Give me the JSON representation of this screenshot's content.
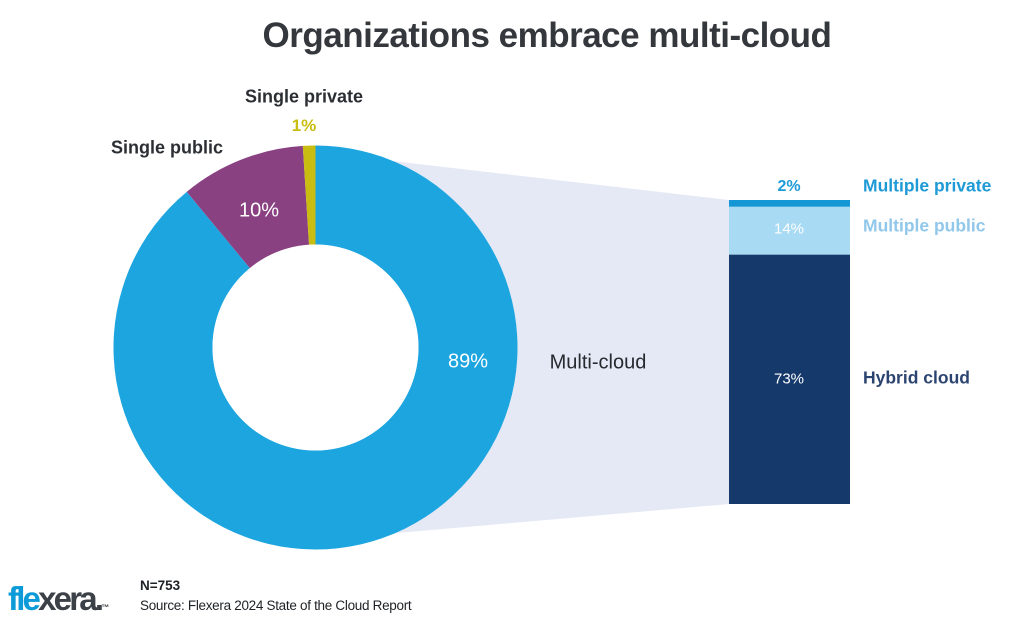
{
  "chart_data": {
    "type": "donut-with-flow-to-stacked-bar",
    "title": "Organizations embrace multi-cloud",
    "flow_label": "Multi-cloud",
    "flow_color": "#E4E9F5",
    "donut": {
      "series": [
        {
          "name": "Multi-cloud",
          "value": 89,
          "label": "89%",
          "color": "#1DA5E0"
        },
        {
          "name": "Single public",
          "value": 10,
          "label": "10%",
          "color": "#8A4182"
        },
        {
          "name": "Single private",
          "value": 1,
          "label": "1%",
          "color": "#C9BD11"
        }
      ]
    },
    "bar": {
      "represents": "Multi-cloud breakdown",
      "segments": [
        {
          "name": "Multiple private",
          "value": 2,
          "label": "2%",
          "color": "#1497D4"
        },
        {
          "name": "Multiple public",
          "value": 14,
          "label": "14%",
          "color": "#A8DAF3"
        },
        {
          "name": "Hybrid cloud",
          "value": 73,
          "label": "73%",
          "color": "#16396C"
        }
      ]
    },
    "notes": {
      "n": "N=753",
      "source": "Source: Flexera 2024 State of the Cloud Report"
    },
    "logo": {
      "blue": "fle",
      "dark": "xera.",
      "tm": "™"
    }
  }
}
